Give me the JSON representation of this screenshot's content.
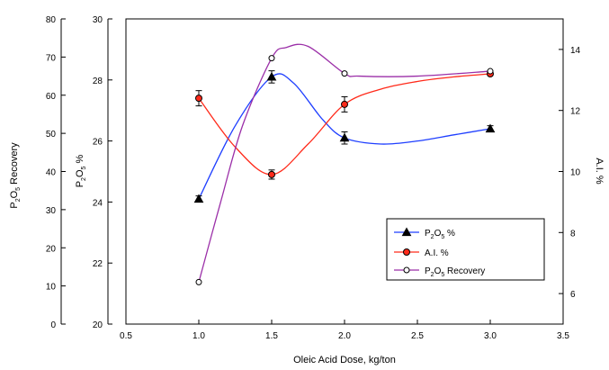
{
  "chart_data": {
    "type": "line",
    "title": "",
    "xlabel": "Oleic Acid Dose, kg/ton",
    "x_ticks": [
      "0.5",
      "1.0",
      "1.5",
      "2.0",
      "2.5",
      "3.0",
      "3.5"
    ],
    "xlim": [
      0.5,
      3.5
    ],
    "y_axes": {
      "outer_left": {
        "label": "P2O5 Recovery",
        "label_main": "P",
        "label_sub": "2",
        "label_mid": "O",
        "label_sub2": "5",
        "label_rest": " Recovery",
        "ylim": [
          0,
          80
        ],
        "ticks": [
          "0",
          "10",
          "20",
          "30",
          "40",
          "50",
          "60",
          "70",
          "80"
        ]
      },
      "inner_left": {
        "label": "P2O5 %",
        "label_main": "P",
        "label_sub": "2",
        "label_mid": "O",
        "label_sub2": "5",
        "label_rest": " %",
        "ylim": [
          20,
          30
        ],
        "ticks": [
          "20",
          "22",
          "24",
          "26",
          "28",
          "30"
        ]
      },
      "right": {
        "label": "A.I. %",
        "ylim": [
          5,
          15
        ],
        "ticks": [
          "6",
          "8",
          "10",
          "12",
          "14"
        ]
      }
    },
    "series": [
      {
        "name": "P2O5 %",
        "legend_main": "P",
        "legend_sub": "2",
        "legend_mid": "O",
        "legend_sub2": "5",
        "legend_rest": " %",
        "axis": "inner_left",
        "color": "#1f3fff",
        "marker": "triangle",
        "x": [
          1.0,
          1.5,
          2.0,
          3.0
        ],
        "y": [
          24.1,
          28.1,
          26.1,
          26.4
        ],
        "err": [
          0.1,
          0.2,
          0.2,
          0.1
        ],
        "curve": [
          [
            1.0,
            24.1
          ],
          [
            1.25,
            26.5
          ],
          [
            1.5,
            28.1
          ],
          [
            1.65,
            27.9
          ],
          [
            1.85,
            26.7
          ],
          [
            2.0,
            26.1
          ],
          [
            2.25,
            25.9
          ],
          [
            2.5,
            26.0
          ],
          [
            2.75,
            26.2
          ],
          [
            3.0,
            26.4
          ]
        ]
      },
      {
        "name": "A.I. %",
        "axis": "right",
        "color": "#ff2a1a",
        "marker": "circle-filled",
        "x": [
          1.0,
          1.5,
          2.0,
          3.0
        ],
        "y": [
          12.4,
          9.9,
          12.2,
          13.2
        ],
        "err": [
          0.25,
          0.15,
          0.25,
          0.05
        ],
        "curve": [
          [
            1.0,
            12.4
          ],
          [
            1.25,
            10.8
          ],
          [
            1.5,
            9.9
          ],
          [
            1.75,
            10.9
          ],
          [
            2.0,
            12.2
          ],
          [
            2.25,
            12.7
          ],
          [
            2.5,
            12.95
          ],
          [
            2.75,
            13.1
          ],
          [
            3.0,
            13.2
          ]
        ]
      },
      {
        "name": "P2O5 Recovery",
        "legend_main": "P",
        "legend_sub": "2",
        "legend_mid": "O",
        "legend_sub2": "5",
        "legend_rest": " Recovery",
        "axis": "outer_left",
        "color": "#9b2fa8",
        "marker": "circle-open",
        "x": [
          1.0,
          1.5,
          2.0,
          3.0
        ],
        "y": [
          11,
          69.7,
          65.7,
          66.3
        ],
        "err": [
          0,
          0,
          0,
          0
        ],
        "curve": [
          [
            1.0,
            11
          ],
          [
            1.15,
            32
          ],
          [
            1.3,
            52
          ],
          [
            1.5,
            69.7
          ],
          [
            1.6,
            72.5
          ],
          [
            1.75,
            72.8
          ],
          [
            2.0,
            65.7
          ],
          [
            2.1,
            65.0
          ],
          [
            2.5,
            65.0
          ],
          [
            3.0,
            66.3
          ]
        ]
      }
    ],
    "legend_position": "inside-lower-right",
    "grid": false
  }
}
